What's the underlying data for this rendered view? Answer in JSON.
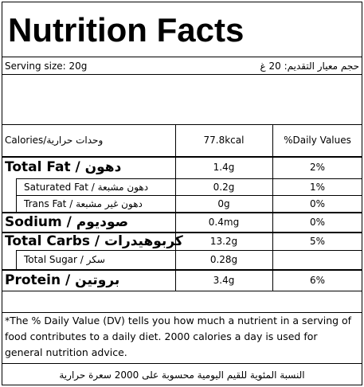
{
  "header": {
    "title": "Nutrition Facts"
  },
  "serving": {
    "en": "Serving size: 20g",
    "ar": "حجم معيار التقديم: 20 غ"
  },
  "calories": {
    "label": "Calories/وحدات حرارية",
    "amount": "77.8kcal",
    "dv": "%Daily Values"
  },
  "table": {
    "rows": [
      {
        "label": "Total Fat / دهون",
        "amount": "1.4g",
        "dv": "2%",
        "major": true
      },
      {
        "label": "Saturated Fat / دهون مشبعة",
        "amount": "0.2g",
        "dv": "1%",
        "major": false
      },
      {
        "label": "Trans Fat / دهون غير مشبعة",
        "amount": "0g",
        "dv": "0%",
        "major": false
      },
      {
        "label": "Sodium / صوديوم",
        "amount": "0.4mg",
        "dv": "0%",
        "major": true
      },
      {
        "label": "Total Carbs / كربوهيدرات",
        "amount": "13.2g",
        "dv": "5%",
        "major": true
      },
      {
        "label": "Total Sugar / سكر",
        "amount": "0.28g",
        "major": false
      },
      {
        "label": "Protein / بروتين",
        "amount": "3.4g",
        "dv": "6%",
        "major": true
      }
    ]
  },
  "footnote": {
    "en": "*The % Daily Value (DV) tells you how much a nutrient in a serving of food contributes to a daily diet. 2000 calories a day is used for general nutrition advice.",
    "ar": "النسبة المئوية للقيم اليومية محسوبة على 2000 سعرة حرارية"
  }
}
